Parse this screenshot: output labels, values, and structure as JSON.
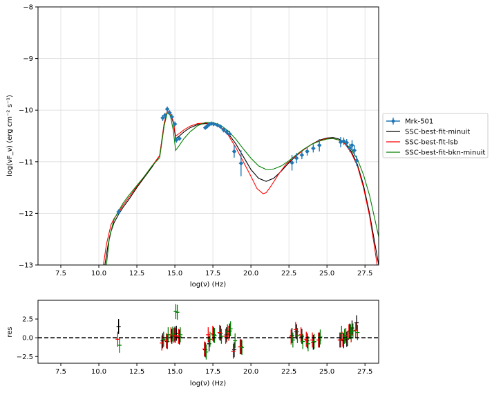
{
  "chart_data": [
    {
      "type": "line",
      "xlabel": "log(ν)  (Hz)",
      "ylabel": "log(νF_ν)  (erg cm⁻² s⁻¹)",
      "xlim": [
        6.0,
        28.4
      ],
      "ylim": [
        -13,
        -8
      ],
      "grid": true,
      "legend_position": "right-outside",
      "xticks": [
        "7.5",
        "10.0",
        "12.5",
        "15.0",
        "17.5",
        "20.0",
        "22.5",
        "25.0",
        "27.5"
      ],
      "yticks": [
        "−13",
        "−12",
        "−11",
        "−10",
        "−9",
        "−8"
      ],
      "legend": [
        "Mrk-501",
        "SSC-best-fit-minuit",
        "SSC-best-fit-lsb",
        "SSC-best-fit-bkn-minuit"
      ],
      "series": [
        {
          "name": "Mrk-501",
          "color": "#1f77b4",
          "points": [
            {
              "x": 11.3,
              "y": -11.97,
              "err": 0.05
            },
            {
              "x": 14.2,
              "y": -10.15,
              "err": 0.06
            },
            {
              "x": 14.35,
              "y": -10.1,
              "err": 0.05
            },
            {
              "x": 14.5,
              "y": -9.98,
              "err": 0.05
            },
            {
              "x": 14.65,
              "y": -10.05,
              "err": 0.05
            },
            {
              "x": 14.8,
              "y": -10.13,
              "err": 0.05
            },
            {
              "x": 15.0,
              "y": -10.27,
              "err": 0.05
            },
            {
              "x": 15.1,
              "y": -10.58,
              "err": 0.05
            },
            {
              "x": 15.3,
              "y": -10.55,
              "err": 0.04
            },
            {
              "x": 17.0,
              "y": -10.34,
              "err": 0.04
            },
            {
              "x": 17.1,
              "y": -10.32,
              "err": 0.04
            },
            {
              "x": 17.25,
              "y": -10.28,
              "err": 0.04
            },
            {
              "x": 17.4,
              "y": -10.26,
              "err": 0.04
            },
            {
              "x": 17.55,
              "y": -10.27,
              "err": 0.04
            },
            {
              "x": 17.8,
              "y": -10.29,
              "err": 0.04
            },
            {
              "x": 18.0,
              "y": -10.32,
              "err": 0.04
            },
            {
              "x": 18.2,
              "y": -10.38,
              "err": 0.05
            },
            {
              "x": 18.4,
              "y": -10.42,
              "err": 0.05
            },
            {
              "x": 18.6,
              "y": -10.46,
              "err": 0.06
            },
            {
              "x": 18.9,
              "y": -10.8,
              "err": 0.12
            },
            {
              "x": 19.35,
              "y": -11.03,
              "err": 0.25
            },
            {
              "x": 22.7,
              "y": -11.02,
              "err": 0.15
            },
            {
              "x": 23.0,
              "y": -10.93,
              "err": 0.1
            },
            {
              "x": 23.35,
              "y": -10.87,
              "err": 0.08
            },
            {
              "x": 23.7,
              "y": -10.8,
              "err": 0.08
            },
            {
              "x": 24.1,
              "y": -10.74,
              "err": 0.08
            },
            {
              "x": 24.5,
              "y": -10.68,
              "err": 0.12
            },
            {
              "x": 25.9,
              "y": -10.62,
              "err": 0.1
            },
            {
              "x": 26.1,
              "y": -10.6,
              "err": 0.07
            },
            {
              "x": 26.3,
              "y": -10.63,
              "err": 0.07
            },
            {
              "x": 26.5,
              "y": -10.73,
              "err": 0.08
            },
            {
              "x": 26.65,
              "y": -10.68,
              "err": 0.1
            },
            {
              "x": 26.8,
              "y": -10.78,
              "err": 0.1
            },
            {
              "x": 26.95,
              "y": -10.98,
              "err": 0.1
            }
          ]
        },
        {
          "name": "SSC-best-fit-minuit",
          "color": "#000000",
          "x": [
            10.4,
            10.6,
            10.8,
            11.0,
            11.3,
            11.6,
            12.0,
            12.5,
            13.0,
            13.5,
            14.0,
            14.3,
            14.5,
            14.7,
            14.9,
            15.05,
            15.3,
            15.6,
            16.0,
            16.5,
            17.0,
            17.5,
            18.0,
            18.5,
            19.0,
            19.5,
            20.0,
            20.5,
            21.0,
            21.5,
            22.0,
            22.5,
            23.0,
            23.5,
            24.0,
            24.5,
            25.0,
            25.4,
            25.8,
            26.2,
            26.6,
            27.0,
            27.4,
            27.8,
            28.1,
            28.4
          ],
          "y": [
            -13.0,
            -12.62,
            -12.35,
            -12.18,
            -12.02,
            -11.88,
            -11.72,
            -11.5,
            -11.3,
            -11.1,
            -10.88,
            -10.25,
            -10.02,
            -10.05,
            -10.25,
            -10.55,
            -10.5,
            -10.42,
            -10.34,
            -10.28,
            -10.26,
            -10.27,
            -10.33,
            -10.45,
            -10.65,
            -10.9,
            -11.15,
            -11.32,
            -11.38,
            -11.32,
            -11.18,
            -11.02,
            -10.88,
            -10.76,
            -10.66,
            -10.58,
            -10.54,
            -10.53,
            -10.56,
            -10.64,
            -10.8,
            -11.05,
            -11.45,
            -12.0,
            -12.5,
            -13.0
          ]
        },
        {
          "name": "SSC-best-fit-lsb",
          "color": "#ff0000",
          "x": [
            10.3,
            10.5,
            10.8,
            11.0,
            11.3,
            11.6,
            12.0,
            12.5,
            13.0,
            13.5,
            14.0,
            14.3,
            14.5,
            14.7,
            14.9,
            15.05,
            15.3,
            15.6,
            16.0,
            16.5,
            17.0,
            17.5,
            18.0,
            18.5,
            19.0,
            19.5,
            20.0,
            20.4,
            20.8,
            21.0,
            21.3,
            21.8,
            22.3,
            23.0,
            23.5,
            24.0,
            24.5,
            25.0,
            25.4,
            25.8,
            26.2,
            26.6,
            27.0,
            27.4,
            27.8,
            28.1,
            28.3
          ],
          "y": [
            -13.0,
            -12.6,
            -12.22,
            -12.1,
            -11.98,
            -11.84,
            -11.68,
            -11.48,
            -11.28,
            -11.08,
            -10.88,
            -10.25,
            -10.02,
            -10.05,
            -10.22,
            -10.5,
            -10.45,
            -10.38,
            -10.31,
            -10.26,
            -10.25,
            -10.27,
            -10.33,
            -10.48,
            -10.72,
            -11.0,
            -11.28,
            -11.52,
            -11.62,
            -11.6,
            -11.48,
            -11.25,
            -11.05,
            -10.88,
            -10.76,
            -10.66,
            -10.59,
            -10.55,
            -10.55,
            -10.58,
            -10.66,
            -10.83,
            -11.08,
            -11.5,
            -12.05,
            -12.6,
            -13.0
          ]
        },
        {
          "name": "SSC-best-fit-bkn-minuit",
          "color": "#008000",
          "x": [
            10.5,
            10.7,
            11.0,
            11.3,
            11.6,
            12.0,
            12.5,
            13.0,
            13.5,
            14.0,
            14.3,
            14.5,
            14.7,
            14.9,
            15.05,
            15.3,
            15.6,
            16.0,
            16.5,
            17.0,
            17.5,
            18.0,
            18.5,
            19.0,
            19.5,
            20.0,
            20.5,
            21.0,
            21.5,
            22.0,
            22.5,
            23.0,
            23.5,
            24.0,
            24.5,
            25.0,
            25.4,
            25.8,
            26.2,
            26.6,
            27.0,
            27.4,
            27.8,
            28.1,
            28.4
          ],
          "y": [
            -13.0,
            -12.45,
            -12.12,
            -11.95,
            -11.8,
            -11.64,
            -11.46,
            -11.28,
            -11.08,
            -10.92,
            -10.3,
            -10.05,
            -10.1,
            -10.4,
            -10.78,
            -10.68,
            -10.55,
            -10.42,
            -10.3,
            -10.24,
            -10.24,
            -10.29,
            -10.4,
            -10.56,
            -10.75,
            -10.93,
            -11.08,
            -11.15,
            -11.14,
            -11.08,
            -10.98,
            -10.86,
            -10.75,
            -10.66,
            -10.6,
            -10.56,
            -10.55,
            -10.58,
            -10.64,
            -10.76,
            -10.95,
            -11.25,
            -11.65,
            -12.05,
            -12.45
          ]
        }
      ]
    },
    {
      "type": "scatter",
      "xlabel": "log(ν)  (Hz)",
      "ylabel": "res",
      "xlim": [
        6.0,
        28.4
      ],
      "ylim": [
        -3.4,
        5.0
      ],
      "grid": false,
      "xticks": [
        "7.5",
        "10.0",
        "12.5",
        "15.0",
        "17.5",
        "20.0",
        "22.5",
        "25.0",
        "27.5"
      ],
      "yticks": [
        "−2.5",
        "0.0",
        "2.5"
      ],
      "zero_line": {
        "y": 0,
        "style": "dashed",
        "color": "#000000"
      },
      "series": [
        {
          "name": "SSC-best-fit-minuit",
          "color": "#000000",
          "x": [
            11.3,
            14.2,
            14.5,
            14.8,
            15.0,
            15.1,
            15.3,
            17.0,
            17.25,
            17.55,
            18.0,
            18.4,
            18.6,
            18.9,
            19.35,
            22.7,
            23.0,
            23.35,
            23.7,
            24.1,
            24.5,
            25.9,
            26.1,
            26.3,
            26.5,
            26.65,
            26.95
          ],
          "y": [
            1.5,
            -0.4,
            -0.5,
            0.2,
            0.5,
            0.6,
            0.1,
            -1.6,
            -0.8,
            0.4,
            0.6,
            0.4,
            0.9,
            -1.6,
            -1.2,
            0.3,
            0.8,
            0.2,
            -0.4,
            -0.6,
            -0.3,
            -0.3,
            -0.4,
            -0.2,
            0.9,
            1.3,
            2.0
          ],
          "err": 1.0
        },
        {
          "name": "SSC-best-fit-lsb",
          "color": "#ff0000",
          "x": [
            11.3,
            14.2,
            14.5,
            14.8,
            15.0,
            15.1,
            15.3,
            17.0,
            17.25,
            17.55,
            18.0,
            18.4,
            18.6,
            18.9,
            19.35,
            22.7,
            23.0,
            23.35,
            23.7,
            24.1,
            24.5,
            25.9,
            26.1,
            26.3,
            26.5,
            26.65,
            26.95
          ],
          "y": [
            -0.2,
            -0.7,
            -0.4,
            0.4,
            0.3,
            0.3,
            0.2,
            -1.5,
            0.4,
            0.6,
            0.7,
            0.2,
            0.6,
            -1.8,
            -1.2,
            0.1,
            1.1,
            0.4,
            -0.2,
            -0.3,
            -0.3,
            -0.3,
            -0.2,
            0.3,
            0.8,
            0.4,
            1.0
          ],
          "err": 1.0
        },
        {
          "name": "SSC-best-fit-bkn-minuit",
          "color": "#008000",
          "x": [
            11.3,
            14.2,
            14.5,
            14.8,
            15.0,
            15.1,
            15.3,
            17.0,
            17.25,
            17.55,
            18.0,
            18.4,
            18.6,
            18.9,
            19.35,
            22.7,
            23.0,
            23.35,
            23.7,
            24.1,
            24.5,
            25.9,
            26.1,
            26.3,
            26.5,
            26.65,
            26.95
          ],
          "y": [
            -1.0,
            -0.2,
            0.4,
            0.5,
            3.5,
            3.4,
            0.4,
            -1.9,
            -0.2,
            0.3,
            0.2,
            0.8,
            1.2,
            -0.4,
            -1.3,
            -0.3,
            0.3,
            -0.5,
            -0.8,
            -0.5,
            0.1,
            0.6,
            0.2,
            -0.1,
            0.8,
            0.9,
            0.7
          ],
          "err": 1.0
        }
      ]
    }
  ]
}
